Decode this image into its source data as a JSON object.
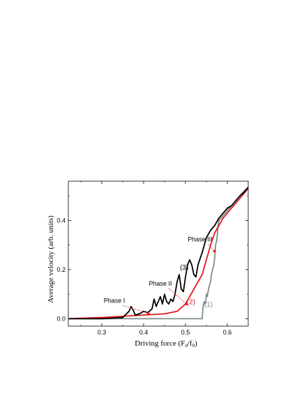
{
  "chart_data": {
    "type": "line",
    "xlabel": "Driving force (F",
    "xlabel_sub1": "d",
    "xlabel_mid": "/f",
    "xlabel_sub2": "0",
    "xlabel_end": ")",
    "ylabel": "Average velocity (arb. units)",
    "xlim": [
      0.22,
      0.65
    ],
    "ylim": [
      -0.03,
      0.56
    ],
    "xticks": [
      0.3,
      0.4,
      0.5,
      0.6
    ],
    "xtick_labels": [
      "0.3",
      "0.4",
      "0.5",
      "0.6"
    ],
    "yticks": [
      0.0,
      0.2,
      0.4
    ],
    "ytick_labels": [
      "0.0",
      "0.2",
      "0.4"
    ],
    "grid": false,
    "series": [
      {
        "name": "(1)",
        "color": "#7f8c8c",
        "x": [
          0.22,
          0.3,
          0.4,
          0.5,
          0.535,
          0.54,
          0.542,
          0.545,
          0.548,
          0.55,
          0.552,
          0.555,
          0.558,
          0.56,
          0.562,
          0.565,
          0.568,
          0.57,
          0.572,
          0.575,
          0.578,
          0.58,
          0.59,
          0.6,
          0.61,
          0.62,
          0.63,
          0.64,
          0.65
        ],
        "y": [
          0.0,
          0.0,
          0.0,
          0.0,
          0.0,
          0.0,
          0.05,
          0.07,
          0.06,
          0.1,
          0.09,
          0.12,
          0.14,
          0.15,
          0.18,
          0.2,
          0.22,
          0.25,
          0.3,
          0.32,
          0.38,
          0.4,
          0.42,
          0.44,
          0.46,
          0.48,
          0.5,
          0.52,
          0.535
        ]
      },
      {
        "name": "(2)",
        "color": "#e0191e",
        "x": [
          0.22,
          0.25,
          0.3,
          0.35,
          0.4,
          0.45,
          0.48,
          0.5,
          0.52,
          0.53,
          0.54,
          0.55,
          0.56,
          0.57,
          0.58,
          0.59,
          0.6,
          0.61,
          0.62,
          0.63,
          0.64,
          0.65
        ],
        "y": [
          0.0,
          0.002,
          0.005,
          0.01,
          0.015,
          0.02,
          0.03,
          0.06,
          0.12,
          0.15,
          0.18,
          0.24,
          0.3,
          0.35,
          0.38,
          0.41,
          0.43,
          0.45,
          0.47,
          0.49,
          0.51,
          0.53
        ]
      },
      {
        "name": "(3)",
        "color": "#000000",
        "x": [
          0.22,
          0.3,
          0.35,
          0.365,
          0.37,
          0.375,
          0.38,
          0.39,
          0.4,
          0.41,
          0.42,
          0.425,
          0.43,
          0.435,
          0.44,
          0.445,
          0.45,
          0.455,
          0.46,
          0.465,
          0.47,
          0.475,
          0.48,
          0.485,
          0.49,
          0.495,
          0.5,
          0.505,
          0.51,
          0.515,
          0.52,
          0.525,
          0.53,
          0.54,
          0.55,
          0.56,
          0.57,
          0.58,
          0.59,
          0.6,
          0.61,
          0.62,
          0.63,
          0.64,
          0.65
        ],
        "y": [
          0.0,
          0.0,
          0.005,
          0.03,
          0.05,
          0.035,
          0.015,
          0.02,
          0.03,
          0.025,
          0.04,
          0.08,
          0.05,
          0.07,
          0.09,
          0.06,
          0.1,
          0.07,
          0.06,
          0.08,
          0.07,
          0.1,
          0.15,
          0.18,
          0.12,
          0.11,
          0.17,
          0.22,
          0.24,
          0.22,
          0.18,
          0.17,
          0.22,
          0.27,
          0.33,
          0.36,
          0.38,
          0.41,
          0.43,
          0.45,
          0.46,
          0.48,
          0.5,
          0.515,
          0.535
        ]
      }
    ],
    "annotations": [
      {
        "text": "Phase I",
        "x": 0.33,
        "y": 0.065,
        "arrow_to": [
          0.415,
          0.02
        ]
      },
      {
        "text": "Phase II",
        "x": 0.44,
        "y": 0.135,
        "arrow_to": [
          0.505,
          0.055
        ]
      },
      {
        "text": "Phase III",
        "x": 0.535,
        "y": 0.315,
        "arrow_to": [
          0.572,
          0.27
        ]
      }
    ],
    "curve_labels": [
      {
        "text": "(1)",
        "x": 0.555,
        "y": 0.05
      },
      {
        "text": "(2)",
        "x": 0.513,
        "y": 0.06
      },
      {
        "text": "(3)",
        "x": 0.497,
        "y": 0.2
      }
    ]
  }
}
